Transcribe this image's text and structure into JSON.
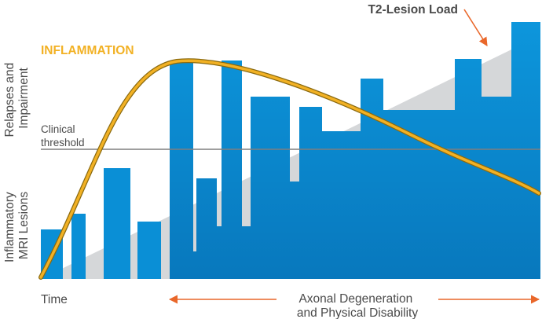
{
  "labels": {
    "y_top": [
      "Relapses and",
      "Impairment"
    ],
    "y_bottom": [
      "Inflammatory",
      "MRI Lesions"
    ],
    "threshold": [
      "Clinical",
      "threshold"
    ],
    "inflammation": "INFLAMMATION",
    "t2_lesion_load": "T2-Lesion Load",
    "time": "Time",
    "axonal": [
      "Axonal Degeneration",
      "and Physical Disability"
    ]
  },
  "colors": {
    "bar_blue": "#0a8fd6",
    "bar_blue_dark": "#0b7ec4",
    "wedge_gray": "#d5d7d9",
    "inflammation_curve": "#f2b124",
    "curve_outline": "#8a6a10",
    "arrow_orange": "#e9672a",
    "threshold_line": "#7f7f7f",
    "text_gray": "#4a4a4a"
  }
}
